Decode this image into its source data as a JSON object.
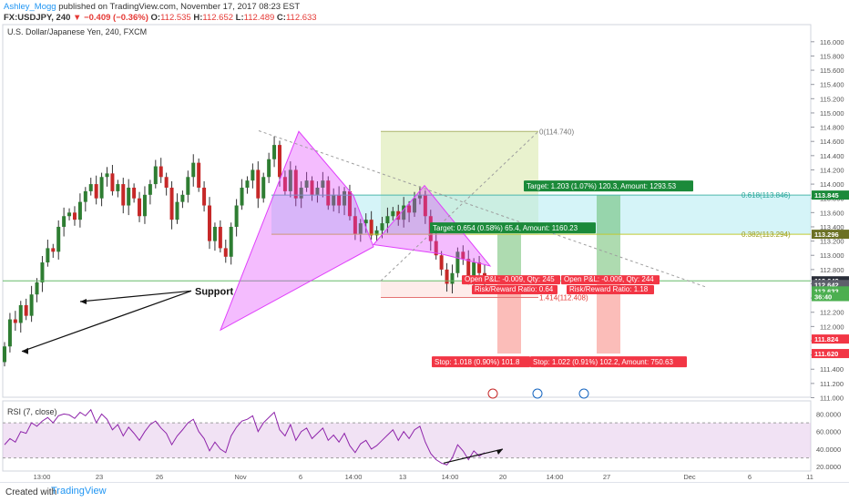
{
  "header": {
    "author": "Ashley_Mogg",
    "published": "published on TradingView.com, November 17, 2017 08:23 EST",
    "symbol": "FX:USDJPY, 240",
    "change": "▼ −0.409 (−0.36%)",
    "o_label": "O:",
    "o_value": "112.535",
    "h_label": "H:",
    "h_value": "112.652",
    "l_label": "L:",
    "l_value": "112.489",
    "c_label": "C:",
    "c_value": "112.633",
    "last": "112.633"
  },
  "footer": {
    "created_with": "Created with",
    "brand": "TradingView"
  },
  "chart_data": [
    {
      "type": "candlestick",
      "title": "U.S. Dollar/Japanese Yen, 240, FXCM",
      "y_ticks": [
        "116.000",
        "115.800",
        "115.600",
        "115.400",
        "115.200",
        "115.000",
        "114.800",
        "114.600",
        "114.400",
        "114.200",
        "114.000",
        "113.800",
        "113.600",
        "113.400",
        "113.200",
        "113.000",
        "112.800",
        "112.600",
        "112.400",
        "112.200",
        "112.000",
        "111.800",
        "111.600",
        "111.400",
        "111.200",
        "111.000"
      ],
      "ylim": [
        111.0,
        116.1
      ],
      "x_ticks": [
        "13:00",
        "23",
        "26",
        "Nov",
        "6",
        "14:00",
        "13",
        "14:00",
        "20",
        "14:00",
        "27",
        "Dec",
        "6",
        "11"
      ],
      "price_tags": [
        {
          "text": "113.845",
          "color": "#1b8a3a"
        },
        {
          "text": "113.296",
          "color": "#6b7024"
        },
        {
          "text": "112.642",
          "color": "#2a2e39"
        },
        {
          "text": "112.642",
          "color": "#5d606b"
        },
        {
          "text": "112.633",
          "color": "#4caf50"
        },
        {
          "text": "36:40",
          "color": "#4caf50"
        },
        {
          "text": "111.824",
          "color": "#f23645"
        },
        {
          "text": "111.620",
          "color": "#f23645"
        }
      ],
      "fib_labels": [
        "0(114.740)",
        "0.618(113.846)",
        "0.382(113.294)",
        "1.414(112.408)"
      ],
      "annotations": {
        "support": "Support",
        "target1": "Target: 1.203 (1.07%) 120.3, Amount: 1293.53",
        "target2": "Target: 0.654 (0.58%) 65.4, Amount: 1160.23",
        "pnl1_a": "Open P&L: -0.009, Qty: 245",
        "pnl1_b": "Risk/Reward Ratio: 0.64",
        "pnl2_a": "Open P&L: -0.009, Qty: 244",
        "pnl2_b": "Risk/Reward Ratio: 1.18",
        "stop1": "Stop: 1.018 (0.90%) 101.8",
        "stop2": "Stop: 1.022 (0.91%) 102.2, Amount: 750.63"
      },
      "anchors": {
        "support_low": 111.65,
        "support_mid": 112.35,
        "pattern1": [
          111.95,
          114.74,
          113.84
        ],
        "pattern2": [
          113.15,
          113.98,
          112.85
        ]
      },
      "series": [
        {
          "name": "USDJPY",
          "close": [
            111.72,
            112.1,
            112.05,
            112.3,
            112.15,
            112.45,
            112.62,
            112.9,
            113.1,
            113.05,
            113.4,
            113.55,
            113.6,
            113.5,
            113.75,
            113.9,
            114.0,
            113.8,
            114.1,
            114.15,
            113.9,
            114.0,
            113.7,
            113.95,
            113.8,
            113.55,
            113.85,
            114.0,
            114.25,
            114.1,
            113.95,
            113.5,
            113.75,
            113.85,
            114.1,
            114.3,
            113.95,
            113.7,
            113.2,
            113.4,
            113.1,
            112.98,
            113.4,
            113.7,
            113.95,
            114.05,
            114.2,
            113.8,
            114.1,
            114.35,
            114.55,
            114.1,
            113.9,
            114.2,
            113.8,
            113.95,
            114.05,
            113.85,
            113.95,
            114.05,
            113.7,
            113.85,
            113.7,
            113.9,
            113.55,
            113.3,
            113.45,
            113.5,
            113.28,
            113.35,
            113.45,
            113.55,
            113.62,
            113.5,
            113.7,
            113.6,
            113.8,
            113.85,
            113.55,
            113.2,
            113.0,
            112.8,
            112.6,
            112.75,
            113.05,
            112.95,
            112.7,
            112.9,
            112.75,
            112.63
          ]
        }
      ]
    },
    {
      "type": "line",
      "title": "RSI (7, close)",
      "y_ticks": [
        "80.0000",
        "60.0000",
        "40.0000",
        "20.0000"
      ],
      "ylim": [
        15,
        95
      ],
      "series": [
        {
          "name": "RSI",
          "values": [
            45,
            52,
            48,
            60,
            58,
            70,
            66,
            72,
            76,
            70,
            78,
            80,
            79,
            75,
            82,
            78,
            85,
            70,
            80,
            74,
            62,
            68,
            55,
            65,
            58,
            50,
            60,
            68,
            72,
            64,
            58,
            45,
            55,
            62,
            70,
            74,
            60,
            52,
            38,
            48,
            40,
            36,
            55,
            65,
            72,
            74,
            78,
            60,
            70,
            76,
            82,
            62,
            55,
            68,
            50,
            60,
            64,
            52,
            58,
            64,
            50,
            56,
            48,
            58,
            44,
            36,
            46,
            50,
            40,
            44,
            50,
            56,
            62,
            50,
            60,
            52,
            62,
            66,
            48,
            35,
            28,
            24,
            22,
            30,
            45,
            38,
            28,
            38,
            32,
            36
          ]
        }
      ]
    }
  ]
}
